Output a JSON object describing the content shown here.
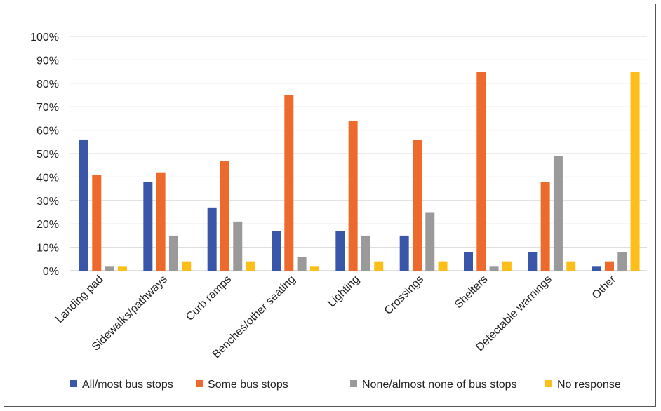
{
  "chart_data": {
    "type": "bar",
    "categories": [
      "Landing pad",
      "Sidewalks/pathways",
      "Curb ramps",
      "Benches/other seating",
      "Lighting",
      "Crossings",
      "Shelters",
      "Detectable warnings",
      "Other"
    ],
    "series": [
      {
        "name": "All/most bus stops",
        "color": "#3A56A8",
        "values": [
          56,
          38,
          27,
          17,
          17,
          15,
          8,
          8,
          2
        ]
      },
      {
        "name": "Some bus stops",
        "color": "#EE6A2C",
        "values": [
          41,
          42,
          47,
          75,
          64,
          56,
          85,
          38,
          4
        ]
      },
      {
        "name": "None/almost none of bus stops",
        "color": "#9A9A9A",
        "values": [
          2,
          15,
          21,
          6,
          15,
          25,
          2,
          49,
          8
        ]
      },
      {
        "name": "No response",
        "color": "#FDBE19",
        "values": [
          2,
          4,
          4,
          2,
          4,
          4,
          4,
          4,
          85
        ]
      }
    ],
    "yticks": [
      "0%",
      "10%",
      "20%",
      "30%",
      "40%",
      "50%",
      "60%",
      "70%",
      "80%",
      "90%",
      "100%"
    ],
    "ylim": [
      0,
      100
    ],
    "grid": true,
    "legend": "bottom"
  }
}
